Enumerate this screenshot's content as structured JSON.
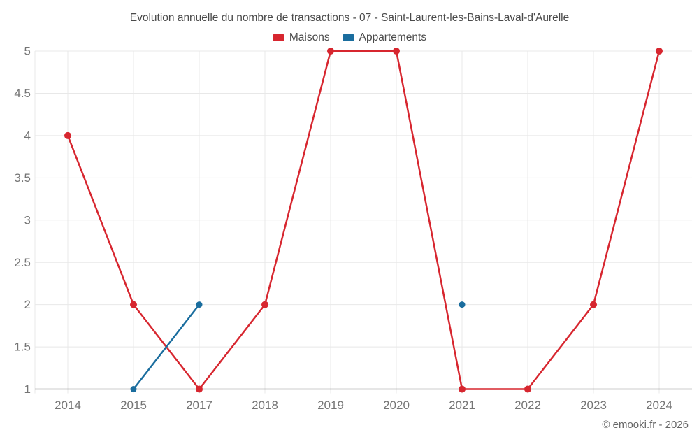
{
  "title": "Evolution annuelle du nombre de transactions - 07 - Saint-Laurent-les-Bains-Laval-d'Aurelle",
  "legend": [
    {
      "label": "Maisons",
      "color": "#d7262f"
    },
    {
      "label": "Appartements",
      "color": "#1a6d9e"
    }
  ],
  "footer": {
    "copyright": "© emooki.fr - 2026"
  },
  "chart_data": {
    "type": "line",
    "title": "Evolution annuelle du nombre de transactions - 07 - Saint-Laurent-les-Bains-Laval-d'Aurelle",
    "categories": [
      "2014",
      "2015",
      "2017",
      "2018",
      "2019",
      "2020",
      "2021",
      "2022",
      "2023",
      "2024"
    ],
    "series": [
      {
        "name": "Maisons",
        "color": "#d7262f",
        "values": [
          4,
          2,
          1,
          2,
          5,
          5,
          1,
          1,
          2,
          5
        ]
      },
      {
        "name": "Appartements",
        "color": "#1a6d9e",
        "values": [
          null,
          1,
          2,
          null,
          null,
          null,
          2,
          null,
          null,
          null
        ]
      }
    ],
    "xlabel": "",
    "ylabel": "",
    "ylim": [
      1,
      5
    ],
    "y_tick_step": 0.5,
    "y_ticks": [
      "1",
      "1.5",
      "2",
      "2.5",
      "3",
      "3.5",
      "4",
      "4.5",
      "5"
    ],
    "grid": true,
    "legend_position": "top",
    "colors": {
      "grid": "#e8e8e8",
      "axis": "#9a9a9a",
      "tick_label": "#757575",
      "title_text": "#4a4a4a",
      "background": "#ffffff"
    }
  }
}
